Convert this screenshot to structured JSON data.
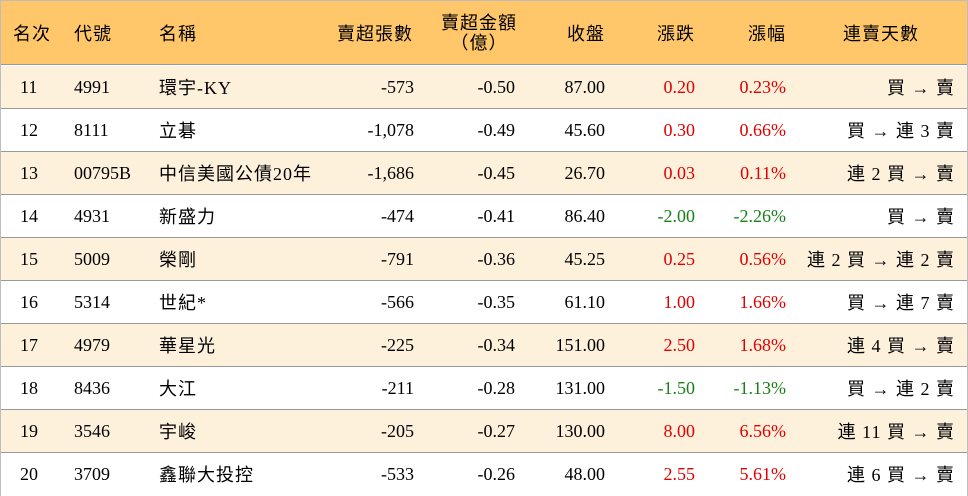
{
  "table": {
    "headers": {
      "rank": "名次",
      "code": "代號",
      "name": "名稱",
      "net_sell_volume": "賣超張數",
      "net_sell_amount_line1": "賣超金額",
      "net_sell_amount_line2": "（億）",
      "close": "收盤",
      "change": "漲跌",
      "change_pct": "漲幅",
      "streak": "連賣天數"
    },
    "rows": [
      {
        "rank": "11",
        "code": "4991",
        "name": "環宇-KY",
        "volume": "-573",
        "amount": "-0.50",
        "close": "87.00",
        "change": "0.20",
        "pct": "0.23%",
        "dir": "up",
        "streak": "買 → 賣"
      },
      {
        "rank": "12",
        "code": "8111",
        "name": "立碁",
        "volume": "-1,078",
        "amount": "-0.49",
        "close": "45.60",
        "change": "0.30",
        "pct": "0.66%",
        "dir": "up",
        "streak": "買 → 連 3 賣"
      },
      {
        "rank": "13",
        "code": "00795B",
        "name": "中信美國公債20年",
        "volume": "-1,686",
        "amount": "-0.45",
        "close": "26.70",
        "change": "0.03",
        "pct": "0.11%",
        "dir": "up",
        "streak": "連 2 買 → 賣"
      },
      {
        "rank": "14",
        "code": "4931",
        "name": "新盛力",
        "volume": "-474",
        "amount": "-0.41",
        "close": "86.40",
        "change": "-2.00",
        "pct": "-2.26%",
        "dir": "down",
        "streak": "買 → 賣"
      },
      {
        "rank": "15",
        "code": "5009",
        "name": "榮剛",
        "volume": "-791",
        "amount": "-0.36",
        "close": "45.25",
        "change": "0.25",
        "pct": "0.56%",
        "dir": "up",
        "streak": "連 2 買 → 連 2 賣"
      },
      {
        "rank": "16",
        "code": "5314",
        "name": "世紀*",
        "volume": "-566",
        "amount": "-0.35",
        "close": "61.10",
        "change": "1.00",
        "pct": "1.66%",
        "dir": "up",
        "streak": "買 → 連 7 賣"
      },
      {
        "rank": "17",
        "code": "4979",
        "name": "華星光",
        "volume": "-225",
        "amount": "-0.34",
        "close": "151.00",
        "change": "2.50",
        "pct": "1.68%",
        "dir": "up",
        "streak": "連 4 買 → 賣"
      },
      {
        "rank": "18",
        "code": "8436",
        "name": "大江",
        "volume": "-211",
        "amount": "-0.28",
        "close": "131.00",
        "change": "-1.50",
        "pct": "-1.13%",
        "dir": "down",
        "streak": "買 → 連 2 賣"
      },
      {
        "rank": "19",
        "code": "3546",
        "name": "宇峻",
        "volume": "-205",
        "amount": "-0.27",
        "close": "130.00",
        "change": "8.00",
        "pct": "6.56%",
        "dir": "up",
        "streak": "連 11 買 → 賣"
      },
      {
        "rank": "20",
        "code": "3709",
        "name": "鑫聯大投控",
        "volume": "-533",
        "amount": "-0.26",
        "close": "48.00",
        "change": "2.55",
        "pct": "5.61%",
        "dir": "up",
        "streak": "連 6 買 → 賣"
      }
    ]
  },
  "colors": {
    "header_bg": "#ffc76a",
    "odd_row_bg": "#fdf1dc",
    "up": "#e00000",
    "down": "#1a7f1a"
  }
}
